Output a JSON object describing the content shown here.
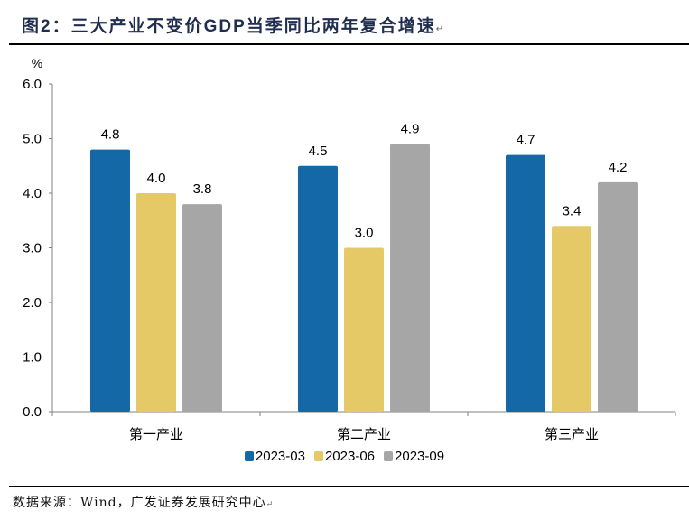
{
  "figure": {
    "title": "图2：三大产业不变价GDP当季同比两年复合增速",
    "paragraph_mark": "↵",
    "source": "数据来源：Wind，广发证券发展研究中心"
  },
  "chart_data": {
    "type": "bar",
    "title": "图2：三大产业不变价GDP当季同比两年复合增速",
    "ylabel": "%",
    "xlabel": "",
    "categories": [
      "第一产业",
      "第二产业",
      "第三产业"
    ],
    "series": [
      {
        "name": "2023-03",
        "color": "#1368a5",
        "values": [
          4.8,
          4.5,
          4.7
        ]
      },
      {
        "name": "2023-06",
        "color": "#e6c967",
        "values": [
          4.0,
          3.0,
          3.4
        ]
      },
      {
        "name": "2023-09",
        "color": "#a6a6a6",
        "values": [
          3.8,
          4.9,
          4.2
        ]
      }
    ],
    "ylim": [
      0,
      6
    ],
    "yticks": [
      0,
      1,
      2,
      3,
      4,
      5,
      6
    ],
    "ytick_labels": [
      "0.0",
      "1.0",
      "2.0",
      "3.0",
      "4.0",
      "5.0",
      "6.0"
    ],
    "data_labels": true,
    "grid": false,
    "legend_position": "bottom"
  }
}
